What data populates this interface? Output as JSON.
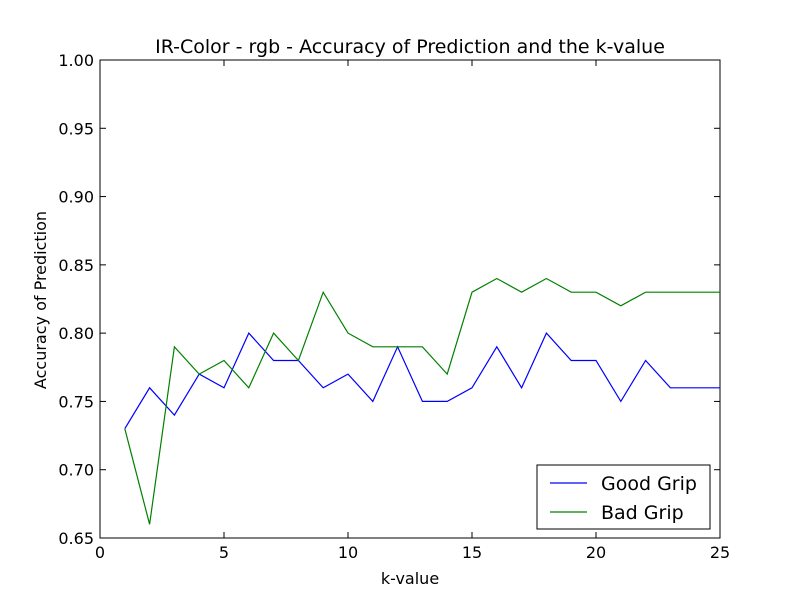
{
  "chart_data": {
    "type": "line",
    "title": "IR-Color - rgb - Accuracy of Prediction and the k-value",
    "xlabel": "k-value",
    "ylabel": "Accuracy of Prediction",
    "xlim": [
      0,
      25
    ],
    "ylim": [
      0.65,
      1.0
    ],
    "xticks": [
      0,
      5,
      10,
      15,
      20,
      25
    ],
    "yticks": [
      0.65,
      0.7,
      0.75,
      0.8,
      0.85,
      0.9,
      0.95,
      1.0
    ],
    "xtick_labels": [
      "0",
      "5",
      "10",
      "15",
      "20",
      "25"
    ],
    "ytick_labels": [
      "0.65",
      "0.70",
      "0.75",
      "0.80",
      "0.85",
      "0.90",
      "0.95",
      "1.00"
    ],
    "grid": false,
    "legend_position": "lower-right",
    "x": [
      1,
      2,
      3,
      4,
      5,
      6,
      7,
      8,
      9,
      10,
      11,
      12,
      13,
      14,
      15,
      16,
      17,
      18,
      19,
      20,
      21,
      22,
      23,
      24,
      25
    ],
    "series": [
      {
        "name": "Good Grip",
        "color": "#0000ff",
        "values": [
          0.73,
          0.76,
          0.74,
          0.77,
          0.76,
          0.8,
          0.78,
          0.78,
          0.76,
          0.77,
          0.75,
          0.79,
          0.75,
          0.75,
          0.76,
          0.79,
          0.76,
          0.8,
          0.78,
          0.78,
          0.75,
          0.78,
          0.76,
          0.76,
          0.76
        ]
      },
      {
        "name": "Bad Grip",
        "color": "#008000",
        "values": [
          0.73,
          0.66,
          0.79,
          0.77,
          0.78,
          0.76,
          0.8,
          0.78,
          0.83,
          0.8,
          0.79,
          0.79,
          0.79,
          0.77,
          0.83,
          0.84,
          0.83,
          0.84,
          0.83,
          0.83,
          0.82,
          0.83,
          0.83,
          0.83,
          0.83
        ]
      }
    ]
  }
}
